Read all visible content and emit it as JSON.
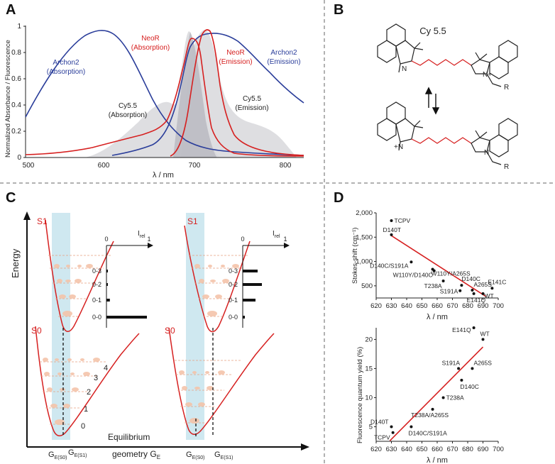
{
  "panels": {
    "a": "A",
    "b": "B",
    "c": "C",
    "d": "D"
  },
  "colors": {
    "red": "#d62020",
    "blue": "#2a3d9a",
    "grey": "#d8d8dc",
    "lightblue": "#cfe8f0",
    "peach": "#f4c4aa"
  },
  "panel_a": {
    "ylabel": "Normalized Absorbance / Fluorescence",
    "xlabel": "λ / nm",
    "xticks": [
      "500",
      "600",
      "700",
      "800"
    ],
    "yticks": [
      "0",
      "0.2",
      "0.4",
      "0.6",
      "0.8",
      "1"
    ],
    "labels": {
      "archon2_abs_1": "Archon2",
      "archon2_abs_2": "(Absorption)",
      "neor_abs_1": "NeoR",
      "neor_abs_2": "(Absorption)",
      "neor_em_1": "NeoR",
      "neor_em_2": "(Emission)",
      "archon2_em_1": "Archon2",
      "archon2_em_2": "(Emission)",
      "cy_abs_1": "Cy5.5",
      "cy_abs_2": "(Absorption)",
      "cy_em_1": "Cy5.5",
      "cy_em_2": "(Emission)"
    }
  },
  "panel_b": {
    "title": "Cy 5.5",
    "r_top": "R",
    "r_bottom": "R",
    "n_plus_top": "N+",
    "n_bottom": "N",
    "n_top_left": "N",
    "n_bottom_left": "+N"
  },
  "panel_c": {
    "energy": "Energy",
    "s1_left": "S1",
    "s0_left": "S0",
    "s1_right": "S1",
    "s0_right": "S0",
    "irel": "I",
    "irel_sub": "rel",
    "axis_0": "0",
    "axis_1": "1",
    "transitions": [
      "0-3",
      "0-2",
      "0-1",
      "0-0"
    ],
    "levels": [
      "0",
      "1",
      "2",
      "3",
      "4"
    ],
    "equilibrium_1": "Equilibrium",
    "equilibrium_2": "geometry G",
    "equilibrium_sub": "E",
    "ge_s0": "G",
    "ge_s0_sub": "E(S0)",
    "ge_s1": "G",
    "ge_s1_sub": "E(S1)",
    "bars_left": [
      0.02,
      0.03,
      0.08,
      0.95
    ],
    "bars_right": [
      0.35,
      0.45,
      0.3,
      0.05
    ]
  },
  "panel_d": {
    "top": {
      "ylabel": "Stokes-shift (cm⁻¹)",
      "xlabel": "λ / nm",
      "xticks": [
        "620",
        "630",
        "640",
        "650",
        "660",
        "670",
        "680",
        "690",
        "700"
      ],
      "yticks": [
        "500",
        "1,000",
        "1,500",
        "2,000"
      ],
      "xlim": [
        620,
        700
      ],
      "ylim": [
        250,
        2000
      ],
      "points": [
        {
          "name": "TCPV",
          "x": 630,
          "y": 1840
        },
        {
          "name": "D140T",
          "x": 630,
          "y": 1550
        },
        {
          "name": "D140C/S191A",
          "x": 643,
          "y": 990
        },
        {
          "name": "W110Y/A265S",
          "x": 657,
          "y": 840
        },
        {
          "name": "W110Y/D140C",
          "x": 658,
          "y": 810
        },
        {
          "name": "T238A",
          "x": 664,
          "y": 600
        },
        {
          "name": "D140C",
          "x": 676,
          "y": 510
        },
        {
          "name": "S191A",
          "x": 675,
          "y": 400
        },
        {
          "name": "A265S",
          "x": 683,
          "y": 410
        },
        {
          "name": "E141Q",
          "x": 684,
          "y": 340
        },
        {
          "name": "WT",
          "x": 690,
          "y": 340
        },
        {
          "name": "E141C",
          "x": 696,
          "y": 450
        }
      ],
      "fit": {
        "x1": 630,
        "y1": 1530,
        "x2": 692,
        "y2": 280
      }
    },
    "bottom": {
      "ylabel": "Fluorescence quantum yield (%)",
      "xlabel": "λ / nm",
      "xticks": [
        "620",
        "630",
        "640",
        "650",
        "660",
        "670",
        "680",
        "690",
        "700"
      ],
      "yticks": [
        "5",
        "10",
        "15",
        "20"
      ],
      "xlim": [
        620,
        700
      ],
      "ylim": [
        2.5,
        22
      ],
      "points": [
        {
          "name": "E141Q",
          "x": 684,
          "y": 22
        },
        {
          "name": "WT",
          "x": 690,
          "y": 20
        },
        {
          "name": "S191A",
          "x": 674,
          "y": 15
        },
        {
          "name": "A265S",
          "x": 683,
          "y": 15
        },
        {
          "name": "D140C",
          "x": 676,
          "y": 13
        },
        {
          "name": "T238A",
          "x": 664,
          "y": 10
        },
        {
          "name": "T238A/A265S",
          "x": 657,
          "y": 8
        },
        {
          "name": "D140T",
          "x": 630,
          "y": 5
        },
        {
          "name": "D140C/S191A",
          "x": 643,
          "y": 5
        },
        {
          "name": "TCPV",
          "x": 631,
          "y": 4
        }
      ],
      "fit": {
        "x1": 629,
        "y1": 2.6,
        "x2": 690,
        "y2": 18.7
      }
    }
  }
}
